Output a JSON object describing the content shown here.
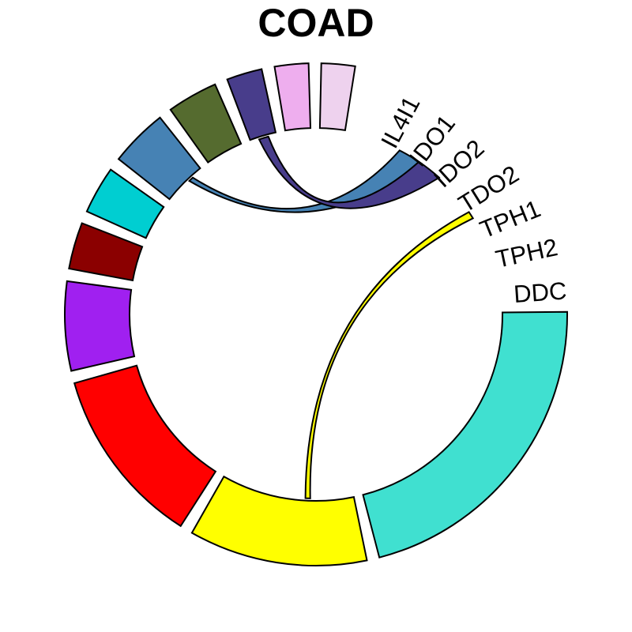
{
  "diagram": {
    "title": "COAD",
    "labels": [
      "IL4I1",
      "IDO1",
      "IDO2",
      "TDO2",
      "TPH1",
      "TPH2",
      "DDC"
    ],
    "sectors": [
      {
        "id": "turquoise",
        "color": "#40E0D0"
      },
      {
        "id": "yellow",
        "color": "#FFFF00"
      },
      {
        "id": "red",
        "color": "#FF0000"
      },
      {
        "id": "purple",
        "color": "#A020F0"
      },
      {
        "id": "darkred",
        "color": "#8B0000"
      },
      {
        "id": "cyan",
        "color": "#00CED1"
      },
      {
        "id": "steelblue",
        "color": "#4682B4"
      },
      {
        "id": "olive",
        "color": "#556B2F"
      },
      {
        "id": "darkslateblue",
        "color": "#483D8B"
      },
      {
        "id": "violet",
        "color": "#EEAEEE"
      },
      {
        "id": "thistle",
        "color": "#EED2EE"
      },
      {
        "id": "label-IL4I1",
        "color": "#FFFFFF"
      },
      {
        "id": "label-IDO1",
        "color": "#FFFFFF"
      },
      {
        "id": "label-IDO2",
        "color": "#FFFFFF"
      },
      {
        "id": "label-TDO2",
        "color": "#FFFFFF"
      },
      {
        "id": "label-TPH1",
        "color": "#FFFFFF"
      },
      {
        "id": "label-TPH2",
        "color": "#FFFFFF"
      },
      {
        "id": "label-DDC",
        "color": "#FFFFFF"
      }
    ],
    "ribbons": [
      {
        "from": "steelblue",
        "to": "label-IDO1",
        "color": "#4682B4"
      },
      {
        "from": "darkslateblue",
        "to": "label-IDO2",
        "color": "#483D8B"
      },
      {
        "from": "yellow",
        "to": "label-TPH1",
        "color": "#FFFF00"
      }
    ]
  }
}
